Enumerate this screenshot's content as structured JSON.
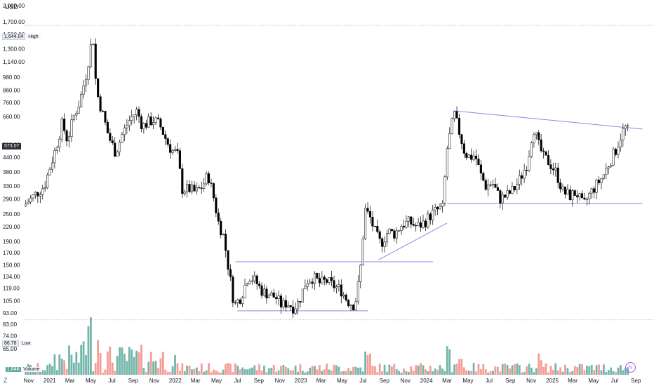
{
  "chart_data": {
    "type": "candlestick",
    "unit": "USD",
    "y_scale": "log",
    "y_ticks": [
      "2,000.00",
      "1,700.00",
      "1,500.00",
      "1,300.00",
      "1,140.00",
      "980.00",
      "860.00",
      "760.00",
      "660.00",
      "573.07",
      "500.00",
      "440.00",
      "380.00",
      "330.00",
      "290.00",
      "250.00",
      "220.00",
      "190.00",
      "170.00",
      "150.00",
      "134.00",
      "119.00",
      "105.00",
      "93.00",
      "83.00",
      "74.00",
      "65.00"
    ],
    "y_tick_values": [
      2000,
      1700,
      1500,
      1300,
      1140,
      980,
      860,
      760,
      660,
      573.07,
      500,
      440,
      380,
      330,
      290,
      250,
      220,
      190,
      170,
      150,
      134,
      119,
      105,
      93,
      83,
      74,
      65
    ],
    "x_ticks": [
      "Nov",
      "2021",
      "Mar",
      "May",
      "Jul",
      "Sep",
      "Nov",
      "2022",
      "Mar",
      "May",
      "Jul",
      "Sep",
      "Nov",
      "2023",
      "Mar",
      "May",
      "Jul",
      "Sep",
      "Nov",
      "2024",
      "Mar",
      "May",
      "Jul",
      "Sep",
      "Nov",
      "2025",
      "Mar",
      "May",
      "Jul",
      "Sep"
    ],
    "x_tick_dates": [
      "2020-11-01",
      "2021-01-01",
      "2021-03-01",
      "2021-05-01",
      "2021-07-01",
      "2021-09-01",
      "2021-11-01",
      "2022-01-01",
      "2022-03-01",
      "2022-05-01",
      "2022-07-01",
      "2022-09-01",
      "2022-11-01",
      "2023-01-01",
      "2023-03-01",
      "2023-05-01",
      "2023-07-01",
      "2023-09-01",
      "2023-11-01",
      "2024-01-01",
      "2024-03-01",
      "2024-05-01",
      "2024-07-01",
      "2024-09-01",
      "2024-11-01",
      "2025-01-01",
      "2025-03-01",
      "2025-05-01",
      "2025-07-01",
      "2025-09-01"
    ],
    "high_marker": {
      "value": "1,644.04",
      "label": "High"
    },
    "low_marker": {
      "value": "86.78",
      "label": "Low"
    },
    "current_price": "573.07",
    "volume_marker": {
      "value": "1.64K",
      "label": "Volume"
    },
    "price_keypoints": [
      [
        "2020-10-20",
        270
      ],
      [
        "2020-11-20",
        300
      ],
      [
        "2020-12-20",
        330
      ],
      [
        "2021-01-01",
        380
      ],
      [
        "2021-01-20",
        470
      ],
      [
        "2021-02-10",
        620
      ],
      [
        "2021-02-25",
        520
      ],
      [
        "2021-03-15",
        660
      ],
      [
        "2021-04-01",
        760
      ],
      [
        "2021-04-20",
        1000
      ],
      [
        "2021-05-10",
        1500
      ],
      [
        "2021-05-20",
        860
      ],
      [
        "2021-06-05",
        700
      ],
      [
        "2021-06-25",
        540
      ],
      [
        "2021-07-15",
        460
      ],
      [
        "2021-08-05",
        560
      ],
      [
        "2021-08-25",
        640
      ],
      [
        "2021-09-15",
        700
      ],
      [
        "2021-10-01",
        600
      ],
      [
        "2021-10-15",
        620
      ],
      [
        "2021-11-01",
        640
      ],
      [
        "2021-11-20",
        610
      ],
      [
        "2021-12-10",
        520
      ],
      [
        "2021-12-25",
        470
      ],
      [
        "2022-01-10",
        460
      ],
      [
        "2022-01-25",
        320
      ],
      [
        "2022-02-15",
        320
      ],
      [
        "2022-03-05",
        310
      ],
      [
        "2022-03-25",
        330
      ],
      [
        "2022-04-10",
        370
      ],
      [
        "2022-04-25",
        300
      ],
      [
        "2022-05-10",
        230
      ],
      [
        "2022-05-25",
        200
      ],
      [
        "2022-06-10",
        140
      ],
      [
        "2022-06-25",
        100
      ],
      [
        "2022-07-15",
        110
      ],
      [
        "2022-08-05",
        135
      ],
      [
        "2022-08-25",
        128
      ],
      [
        "2022-09-15",
        115
      ],
      [
        "2022-10-05",
        112
      ],
      [
        "2022-10-25",
        108
      ],
      [
        "2022-11-10",
        100
      ],
      [
        "2022-11-25",
        103
      ],
      [
        "2022-12-15",
        98
      ],
      [
        "2022-12-30",
        104
      ],
      [
        "2023-01-20",
        128
      ],
      [
        "2023-02-10",
        133
      ],
      [
        "2023-03-01",
        125
      ],
      [
        "2023-03-20",
        128
      ],
      [
        "2023-04-10",
        122
      ],
      [
        "2023-05-01",
        117
      ],
      [
        "2023-05-20",
        105
      ],
      [
        "2023-06-10",
        100
      ],
      [
        "2023-06-25",
        135
      ],
      [
        "2023-07-10",
        262
      ],
      [
        "2023-07-25",
        240
      ],
      [
        "2023-08-10",
        205
      ],
      [
        "2023-08-25",
        185
      ],
      [
        "2023-09-15",
        210
      ],
      [
        "2023-10-05",
        205
      ],
      [
        "2023-10-25",
        225
      ],
      [
        "2023-11-15",
        230
      ],
      [
        "2023-12-10",
        220
      ],
      [
        "2023-12-30",
        230
      ],
      [
        "2024-01-20",
        250
      ],
      [
        "2024-02-05",
        260
      ],
      [
        "2024-02-20",
        265
      ],
      [
        "2024-03-05",
        480
      ],
      [
        "2024-03-25",
        680
      ],
      [
        "2024-04-10",
        560
      ],
      [
        "2024-04-25",
        460
      ],
      [
        "2024-05-10",
        440
      ],
      [
        "2024-05-25",
        450
      ],
      [
        "2024-06-10",
        370
      ],
      [
        "2024-06-25",
        330
      ],
      [
        "2024-07-15",
        340
      ],
      [
        "2024-08-05",
        290
      ],
      [
        "2024-08-25",
        300
      ],
      [
        "2024-09-15",
        320
      ],
      [
        "2024-10-05",
        360
      ],
      [
        "2024-10-25",
        420
      ],
      [
        "2024-11-10",
        600
      ],
      [
        "2024-11-25",
        500
      ],
      [
        "2024-12-10",
        440
      ],
      [
        "2024-12-25",
        420
      ],
      [
        "2025-01-15",
        380
      ],
      [
        "2025-02-05",
        310
      ],
      [
        "2025-02-25",
        300
      ],
      [
        "2025-03-15",
        310
      ],
      [
        "2025-04-05",
        270
      ],
      [
        "2025-04-20",
        300
      ],
      [
        "2025-05-10",
        330
      ],
      [
        "2025-05-30",
        360
      ],
      [
        "2025-06-20",
        420
      ],
      [
        "2025-07-10",
        480
      ],
      [
        "2025-07-25",
        560
      ],
      [
        "2025-08-05",
        590
      ],
      [
        "2025-08-10",
        573
      ]
    ],
    "drawings": [
      {
        "name": "descending-resistance",
        "from": [
          "2024-03-20",
          700
        ],
        "to": [
          "2025-09-20",
          583
        ]
      },
      {
        "name": "support-2024",
        "from": [
          "2024-03-01",
          278
        ],
        "to": [
          "2025-09-20",
          278
        ]
      },
      {
        "name": "ascending-trendline",
        "from": [
          "2023-08-15",
          158
        ],
        "to": [
          "2024-03-01",
          228
        ]
      },
      {
        "name": "range-top-2022",
        "from": [
          "2022-06-25",
          155
        ],
        "to": [
          "2024-01-20",
          155
        ]
      },
      {
        "name": "range-bottom-2022",
        "from": [
          "2022-07-01",
          95
        ],
        "to": [
          "2023-07-15",
          95
        ]
      }
    ],
    "colors": {
      "up": "#ffffff",
      "down": "#000000",
      "vol_up": "#5ca89a",
      "vol_down": "#f28b82",
      "line": "#8e86e6",
      "grid": "#b2b5be"
    }
  }
}
